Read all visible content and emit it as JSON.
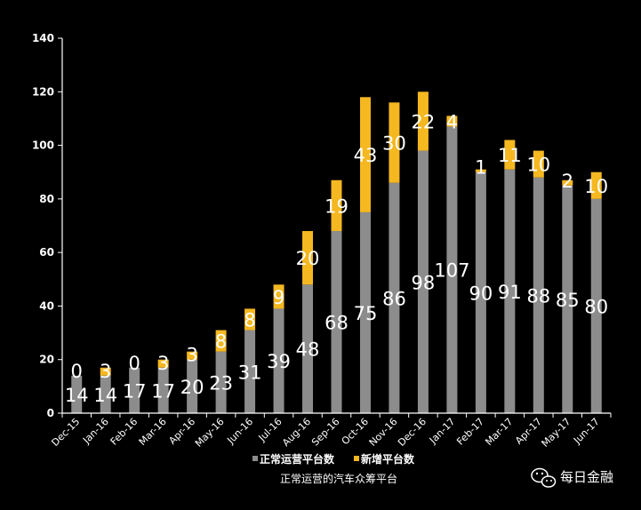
{
  "chart_data": {
    "type": "bar",
    "stacked": true,
    "categories": [
      "Dec-15",
      "Jan-16",
      "Feb-16",
      "Mar-16",
      "Apr-16",
      "May-16",
      "Jun-16",
      "Jul-16",
      "Aug-16",
      "Sep-16",
      "Oct-16",
      "Nov-16",
      "Dec-16",
      "Jan-17",
      "Feb-17",
      "Mar-17",
      "Apr-17",
      "May-17",
      "Jun-17"
    ],
    "series": [
      {
        "name": "正常运营平台数",
        "color": "#8c8c8c",
        "values": [
          14,
          14,
          17,
          17,
          20,
          23,
          31,
          39,
          48,
          68,
          75,
          86,
          98,
          107,
          90,
          91,
          88,
          85,
          80
        ]
      },
      {
        "name": "新增平台数",
        "color": "#f5b820",
        "values": [
          0,
          3,
          0,
          3,
          3,
          8,
          8,
          9,
          20,
          19,
          43,
          30,
          22,
          4,
          1,
          11,
          10,
          2,
          10
        ]
      }
    ],
    "yticks": [
      0,
      20,
      40,
      60,
      80,
      100,
      120,
      140
    ],
    "ylim": [
      0,
      140
    ],
    "grid": false,
    "legend_position": "bottom",
    "caption": "正常运营的汽车众筹平台"
  },
  "watermark": {
    "text": "每日金融",
    "icon": "wechat-icon"
  }
}
